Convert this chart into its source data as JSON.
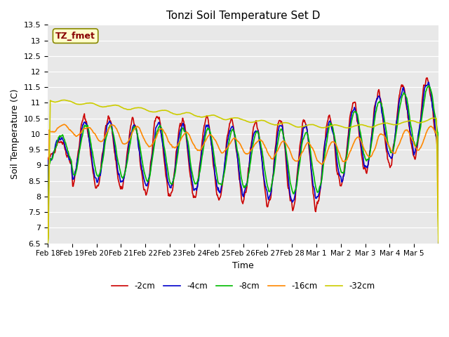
{
  "title": "Tonzi Soil Temperature Set D",
  "xlabel": "Time",
  "ylabel": "Soil Temperature (C)",
  "ylim": [
    6.5,
    13.5
  ],
  "yticks": [
    6.5,
    7.0,
    7.5,
    8.0,
    8.5,
    9.0,
    9.5,
    10.0,
    10.5,
    11.0,
    11.5,
    12.0,
    12.5,
    13.0,
    13.5
  ],
  "xtick_positions": [
    0,
    1,
    2,
    3,
    4,
    5,
    6,
    7,
    8,
    9,
    10,
    11,
    12,
    13,
    14,
    15
  ],
  "xtick_labels": [
    "Feb 18",
    "Feb 19",
    "Feb 20",
    "Feb 21",
    "Feb 22",
    "Feb 23",
    "Feb 24",
    "Feb 25",
    "Feb 26",
    "Feb 27",
    "Feb 28",
    "Mar 1",
    "Mar 2",
    "Mar 3",
    "Mar 4",
    "Mar 5"
  ],
  "legend_labels": [
    "-2cm",
    "-4cm",
    "-8cm",
    "-16cm",
    "-32cm"
  ],
  "line_colors": [
    "#cc0000",
    "#0000cc",
    "#00bb00",
    "#ff8800",
    "#cccc00"
  ],
  "plot_bg_color": "#e8e8e8",
  "annotation_text": "TZ_fmet",
  "annotation_color": "#880000",
  "annotation_bg": "#ffffcc",
  "annotation_border": "#888800",
  "n_days": 16,
  "n_per_day": 48
}
